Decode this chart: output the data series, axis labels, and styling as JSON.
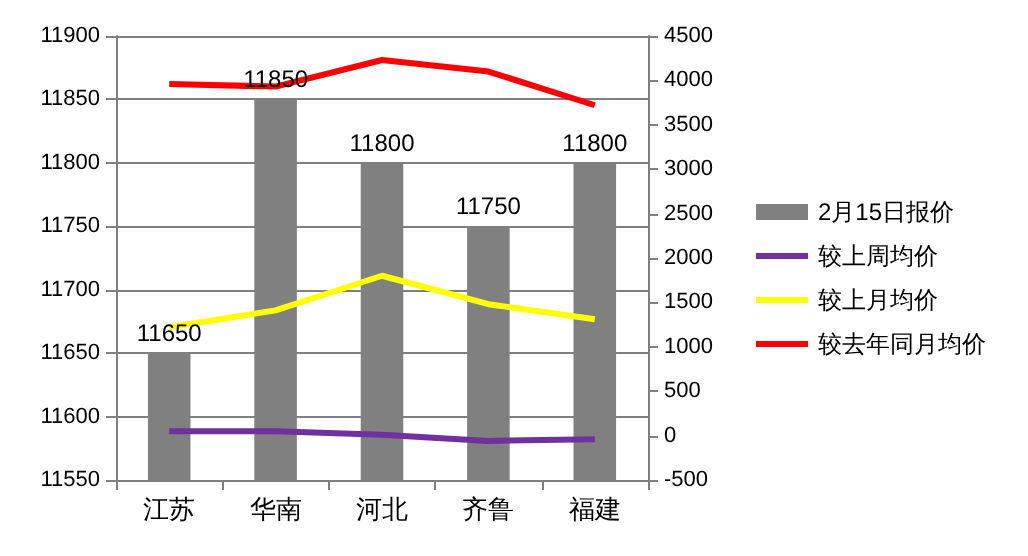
{
  "chart_data": {
    "type": "bar",
    "categories": [
      "江苏",
      "华南",
      "河北",
      "齐鲁",
      "福建"
    ],
    "series": [
      {
        "name": "2月15日报价",
        "color": "#808080",
        "values": [
          11650,
          11850,
          11800,
          11750,
          11800
        ],
        "data_labels": true
      },
      {
        "name": "较上周均价",
        "type": "line",
        "axis": "y2",
        "color": "#7030a0",
        "values": [
          50,
          50,
          10,
          -60,
          -40
        ]
      },
      {
        "name": "较上月均价",
        "type": "line",
        "axis": "y2",
        "color": "#ffff00",
        "values": [
          1220,
          1410,
          1800,
          1480,
          1310
        ]
      },
      {
        "name": "较去年同月均价",
        "type": "line",
        "axis": "y2",
        "color": "#ff0000",
        "values": [
          3960,
          3930,
          4230,
          4100,
          3720
        ]
      }
    ],
    "ylim": [
      11550,
      11900
    ],
    "yticks": [
      11550,
      11600,
      11650,
      11700,
      11750,
      11800,
      11850,
      11900
    ],
    "y2lim": [
      -500,
      4500
    ],
    "y2ticks": [
      -500,
      0,
      500,
      1000,
      1500,
      2000,
      2500,
      3000,
      3500,
      4000,
      4500
    ],
    "grid": "y",
    "legend": "right",
    "marker": "none"
  }
}
